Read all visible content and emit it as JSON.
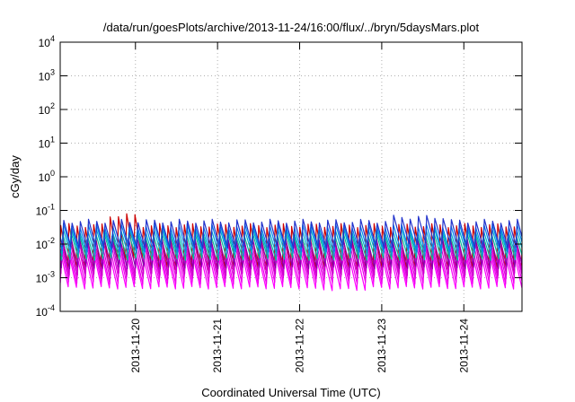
{
  "chart_data": {
    "type": "line",
    "title": "/data/run/goesPlots/archive/2013-11-24/16:00/flux/../bryn/5daysMars.plot",
    "xlabel": "Coordinated Universal Time (UTC)",
    "ylabel": "cGy/day",
    "y_scale": "log",
    "ylim_exponent": [
      -4,
      4
    ],
    "y_ticks": [
      {
        "base": "10",
        "exp": "4"
      },
      {
        "base": "10",
        "exp": "3"
      },
      {
        "base": "10",
        "exp": "2"
      },
      {
        "base": "10",
        "exp": "1"
      },
      {
        "base": "10",
        "exp": "0"
      },
      {
        "base": "10",
        "exp": "-1"
      },
      {
        "base": "10",
        "exp": "-2"
      },
      {
        "base": "10",
        "exp": "-3"
      },
      {
        "base": "10",
        "exp": "-4"
      }
    ],
    "x_range": [
      "2013-11-19T02:00",
      "2013-11-24T17:00"
    ],
    "x_ticks": [
      "2013-11-20",
      "2013-11-21",
      "2013-11-22",
      "2013-11-23",
      "2013-11-24"
    ],
    "grid": true,
    "pattern": {
      "cycles": 56,
      "peak_hours_utc": [
        0.0,
        2.4
      ],
      "trough_offset_hours": 2.1
    },
    "series": [
      {
        "color": "#cc0000",
        "peak_log10": -1.45,
        "trough_log10": -2.75,
        "shift_hours": 0.15,
        "bumps": [
          {
            "cycles": [
              6,
              9
            ],
            "add_log10": 0.3
          }
        ]
      },
      {
        "color": "#ff00ff",
        "peak_log10": -2.35,
        "trough_log10": -3.3,
        "shift_hours": 0.25,
        "bumps": [
          {
            "cycles": [
              30,
              36
            ],
            "add_log10": -0.05
          }
        ]
      },
      {
        "color": "#ee00ee",
        "peak_log10": -2.2,
        "trough_log10": -3.15,
        "shift_hours": 0.35,
        "bumps": []
      },
      {
        "color": "#dd00dd",
        "peak_log10": -2.05,
        "trough_log10": -3.0,
        "shift_hours": 0.45,
        "bumps": []
      },
      {
        "color": "#cc00cc",
        "peak_log10": -1.9,
        "trough_log10": -2.9,
        "shift_hours": 0.55,
        "bumps": []
      },
      {
        "color": "#8800aa",
        "peak_log10": -1.8,
        "trough_log10": -2.7,
        "shift_hours": 0.65,
        "bumps": []
      },
      {
        "color": "#00bb99",
        "peak_log10": -1.7,
        "trough_log10": -2.45,
        "shift_hours": 0.75,
        "bumps": []
      },
      {
        "color": "#00aacc",
        "peak_log10": -1.58,
        "trough_log10": -2.3,
        "shift_hours": 0.85,
        "bumps": []
      },
      {
        "color": "#0088ee",
        "peak_log10": -1.45,
        "trough_log10": -2.2,
        "shift_hours": 0.95,
        "bumps": []
      },
      {
        "color": "#2233cc",
        "peak_log10": -1.32,
        "trough_log10": -2.1,
        "shift_hours": 1.05,
        "bumps": [
          {
            "cycles": [
              40,
              46
            ],
            "add_log10": 0.12
          }
        ]
      }
    ]
  }
}
